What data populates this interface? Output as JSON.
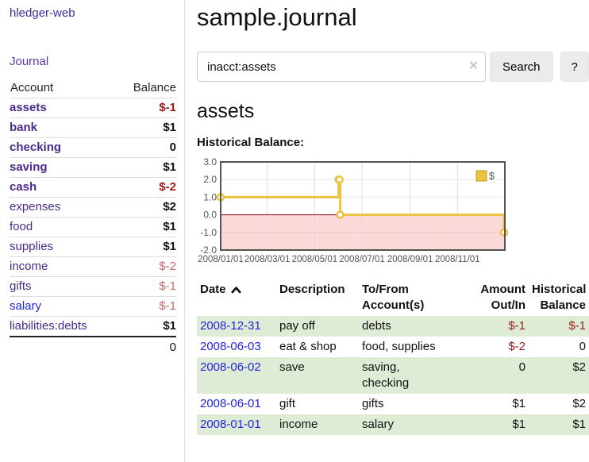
{
  "app": {
    "title": "hledger-web",
    "nav_journal": "Journal"
  },
  "sidebar": {
    "accounts": {
      "header": {
        "account": "Account",
        "balance": "Balance"
      },
      "rows": [
        {
          "name": "assets",
          "indent": 1,
          "bold": true,
          "link": "purple",
          "balance": "$-1",
          "balance_class": "neg-strong"
        },
        {
          "name": "bank",
          "indent": 2,
          "bold": true,
          "link": "purple",
          "balance": "$1",
          "balance_class": ""
        },
        {
          "name": "checking",
          "indent": 3,
          "bold": true,
          "link": "purple",
          "balance": "0",
          "balance_class": ""
        },
        {
          "name": "saving",
          "indent": 3,
          "bold": true,
          "link": "purple",
          "balance": "$1",
          "balance_class": ""
        },
        {
          "name": "cash",
          "indent": 2,
          "bold": true,
          "link": "purple",
          "balance": "$-2",
          "balance_class": "neg-strong"
        },
        {
          "name": "expenses",
          "indent": 1,
          "bold": false,
          "link": "purple",
          "balance": "$2",
          "balance_class": ""
        },
        {
          "name": "food",
          "indent": 2,
          "bold": false,
          "link": "purple",
          "balance": "$1",
          "balance_class": ""
        },
        {
          "name": "supplies",
          "indent": 2,
          "bold": false,
          "link": "purple",
          "balance": "$1",
          "balance_class": ""
        },
        {
          "name": "income",
          "indent": 1,
          "bold": false,
          "link": "purple",
          "balance": "$-2",
          "balance_class": "neg-soft"
        },
        {
          "name": "gifts",
          "indent": 2,
          "bold": false,
          "link": "purple",
          "balance": "$-1",
          "balance_class": "neg-soft"
        },
        {
          "name": "salary",
          "indent": 2,
          "bold": false,
          "link": "blue",
          "balance": "$-1",
          "balance_class": "neg-soft"
        },
        {
          "name": "liabilities:debts",
          "indent": 1,
          "bold": false,
          "link": "purple",
          "balance": "$1",
          "balance_class": ""
        }
      ],
      "total": "0"
    }
  },
  "main": {
    "title": "sample.journal",
    "search": {
      "value": "inacct:assets",
      "clear": "×",
      "button": "Search",
      "help": "?"
    },
    "heading": "assets",
    "chart_title": "Historical Balance:",
    "register": {
      "headers": [
        "Date",
        "Description",
        "To/From\nAccount(s)",
        "Amount\nOut/In",
        "Historical\nBalance"
      ],
      "sort": {
        "column": "Date",
        "direction": "ascending"
      },
      "rows": [
        {
          "date": "2008-12-31",
          "description": "pay off",
          "accounts": "debts",
          "amount": "$-1",
          "amount_negative": true,
          "balance": "$-1",
          "balance_negative": true
        },
        {
          "date": "2008-06-03",
          "description": "eat & shop",
          "accounts": "food, supplies",
          "amount": "$-2",
          "amount_negative": true,
          "balance": "0",
          "balance_negative": false
        },
        {
          "date": "2008-06-02",
          "description": "save",
          "accounts": "saving,\nchecking",
          "amount": "0",
          "amount_negative": false,
          "balance": "$2",
          "balance_negative": false
        },
        {
          "date": "2008-06-01",
          "description": "gift",
          "accounts": "gifts",
          "amount": "$1",
          "amount_negative": false,
          "balance": "$2",
          "balance_negative": false
        },
        {
          "date": "2008-01-01",
          "description": "income",
          "accounts": "salary",
          "amount": "$1",
          "amount_negative": false,
          "balance": "$1",
          "balance_negative": false
        }
      ]
    }
  },
  "chart_data": {
    "type": "line",
    "steps": true,
    "title": "Historical Balance:",
    "series": [
      {
        "name": "$",
        "color": "#edc240",
        "points": [
          [
            "2008-01-01",
            1
          ],
          [
            "2008-06-01",
            2
          ],
          [
            "2008-06-02",
            2
          ],
          [
            "2008-06-03",
            0
          ],
          [
            "2008-12-31",
            -1
          ]
        ]
      }
    ],
    "x_ticks": [
      {
        "date": "2008-01-01",
        "label": "2008/01/01"
      },
      {
        "date": "2008-03-01",
        "label": "2008/03/01"
      },
      {
        "date": "2008-05-01",
        "label": "2008/05/01"
      },
      {
        "date": "2008-07-01",
        "label": "2008/07/01"
      },
      {
        "date": "2008-09-01",
        "label": "2008/09/01"
      },
      {
        "date": "2008-11-01",
        "label": "2008/11/01"
      }
    ],
    "y_ticks": [
      "3.0",
      "2.0",
      "1.0",
      "0.0",
      "-1.0",
      "-2.0"
    ],
    "xlim": [
      "2008-01-01",
      "2009-01-01"
    ],
    "ylim": [
      -2,
      3
    ],
    "legend": {
      "label": "$",
      "position": "top-right"
    },
    "negative_fill": "#fbd9d9",
    "zero_line": "#8b0000",
    "axis_color": "#545454",
    "grid": true
  },
  "colors": {
    "link_purple": "#4a2a8c",
    "link_purple_dark": "#3c2c9e",
    "link_purple_mid": "#5c35a8",
    "link_blue": "#2424dd",
    "negative_strong": "#9e1a1a",
    "negative_soft": "#c46868",
    "row_stripe": "#deecd6",
    "series_yellow": "#edc240"
  }
}
